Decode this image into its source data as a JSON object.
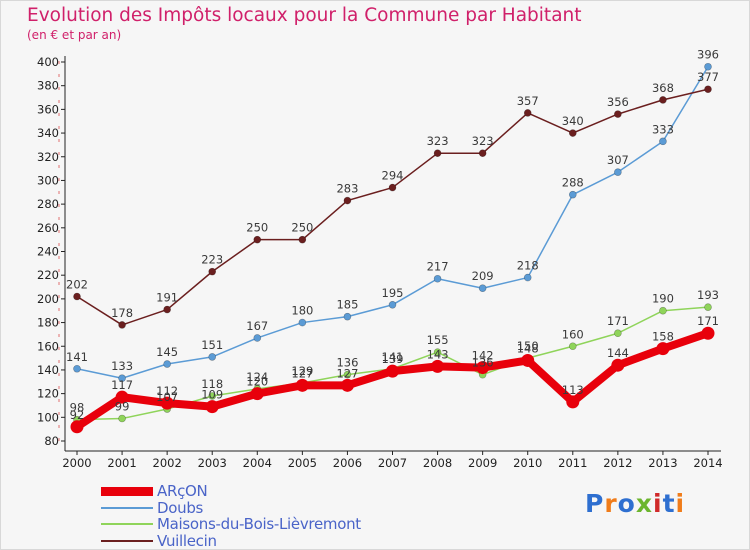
{
  "header": {
    "title": "Evolution des Impôts locaux pour la Commune par Habitant",
    "subtitle": "(en € et par an)"
  },
  "logo": {
    "text": "Proxiti",
    "colors": [
      "#2e6fd0",
      "#f07c1a",
      "#2e6fd0",
      "#6cb52e",
      "#d02a2a",
      "#2e6fd0",
      "#f07c1a"
    ]
  },
  "chart_data": {
    "type": "line",
    "title": "Evolution des Impôts locaux pour la Commune par Habitant",
    "subtitle": "(en € et par an)",
    "xlabel": "",
    "ylabel": "",
    "x": [
      "2000",
      "2001",
      "2002",
      "2003",
      "2004",
      "2005",
      "2006",
      "2007",
      "2008",
      "2009",
      "2010",
      "2011",
      "2012",
      "2013",
      "2014"
    ],
    "ylim": [
      80,
      400
    ],
    "yticks": [
      80,
      100,
      120,
      140,
      160,
      180,
      200,
      220,
      240,
      260,
      280,
      300,
      320,
      340,
      360,
      380,
      400
    ],
    "grid": false,
    "legend": "bottom-left",
    "series": [
      {
        "name": "ARçON",
        "color": "#e8000b",
        "width": 8,
        "values": [
          92,
          117,
          112,
          109,
          120,
          127,
          127,
          139,
          143,
          142,
          148,
          113,
          144,
          158,
          171
        ]
      },
      {
        "name": "Doubs",
        "color": "#5b9bd5",
        "width": 1.5,
        "values": [
          141,
          133,
          145,
          151,
          167,
          180,
          185,
          195,
          217,
          209,
          218,
          288,
          307,
          333,
          396
        ]
      },
      {
        "name": "Maisons-du-Bois-Lièvremont",
        "color": "#8fd45a",
        "width": 1.5,
        "values": [
          98,
          99,
          107,
          118,
          124,
          129,
          136,
          141,
          155,
          136,
          150,
          160,
          171,
          190,
          193
        ]
      },
      {
        "name": "Vuillecin",
        "color": "#6b1f1f",
        "width": 1.5,
        "values": [
          202,
          178,
          191,
          223,
          250,
          250,
          283,
          294,
          323,
          323,
          357,
          340,
          356,
          368,
          377
        ]
      }
    ]
  }
}
